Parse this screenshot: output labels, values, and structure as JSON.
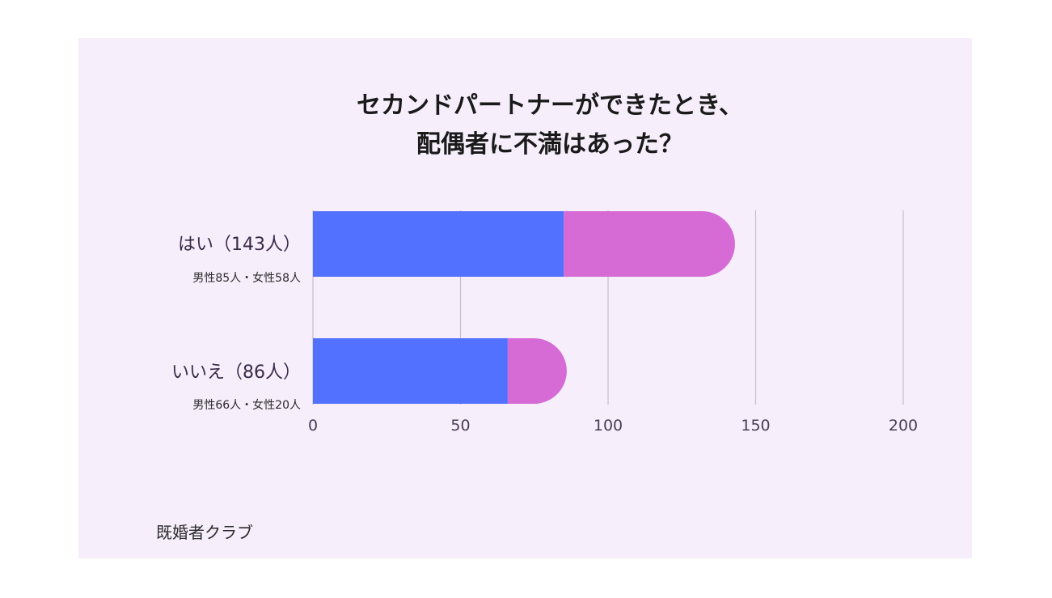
{
  "chart_data": {
    "type": "bar",
    "orientation": "horizontal",
    "stacked": true,
    "title_lines": [
      "セカンドパートナーができたとき、",
      "配偶者に不満はあった？"
    ],
    "categories": [
      "はい（143人）",
      "いいえ（86人）"
    ],
    "category_sublabels": [
      "男性85人・女性58人",
      "男性66人・女性20人"
    ],
    "totals": [
      143,
      86
    ],
    "series": [
      {
        "values": [
          85,
          66
        ],
        "color": "#5271ff"
      },
      {
        "values": [
          58,
          20
        ],
        "color": "#d66bd6"
      }
    ],
    "xlim": [
      0,
      200
    ],
    "xticks": [
      "0",
      "50",
      "100",
      "150",
      "200"
    ],
    "grid": true,
    "legend": "none"
  },
  "source": "既婚者クラブ",
  "colors": {
    "background": "#f6eefb",
    "grid": "#c9bccf",
    "male": "#5271ff",
    "female": "#d66bd6"
  }
}
